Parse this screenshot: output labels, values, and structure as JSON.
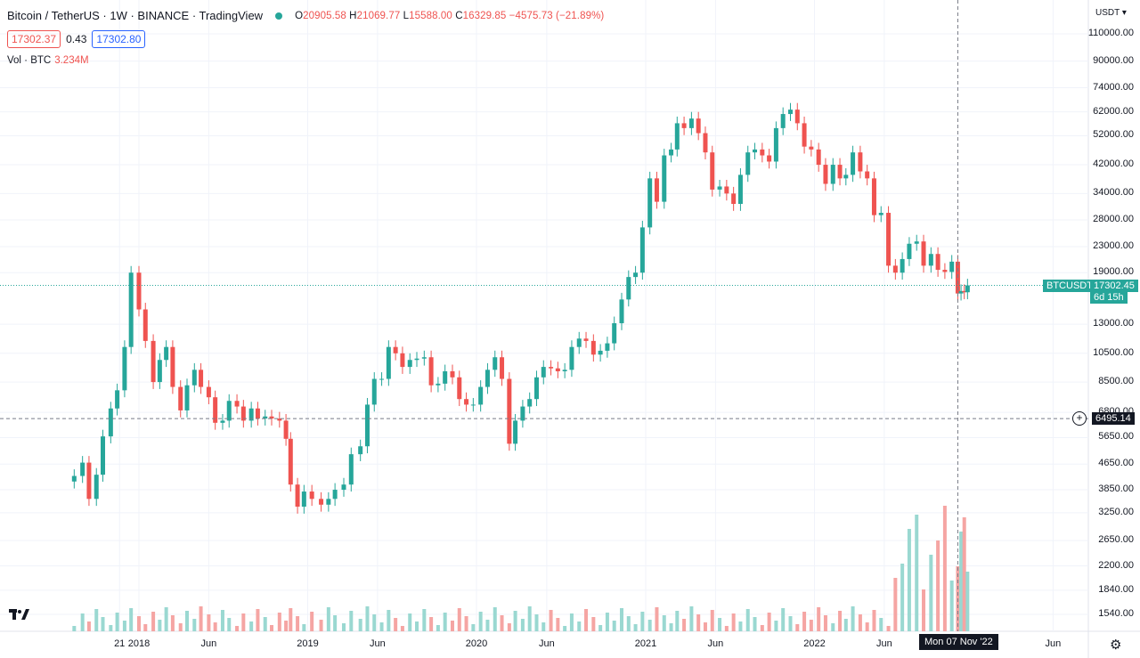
{
  "header": {
    "title": "Bitcoin / TetherUS · 1W · BINANCE · TradingView",
    "ohlc": {
      "o_label": "O",
      "o": "20905.58",
      "h_label": "H",
      "h": "21069.77",
      "l_label": "L",
      "l": "15588.00",
      "c_label": "C",
      "c": "16329.85",
      "change": "−4575.73 (−21.89%)"
    },
    "bid": "17302.37",
    "spread": "0.43",
    "ask": "17302.80",
    "volume_label": "Vol · BTC",
    "volume_value": "3.234M"
  },
  "axis": {
    "currency": "USDT",
    "price_ticks": [
      "110000.00",
      "90000.00",
      "74000.00",
      "62000.00",
      "52000.00",
      "42000.00",
      "34000.00",
      "28000.00",
      "23000.00",
      "19000.00",
      "13000.00",
      "10500.00",
      "8500.00",
      "6800.00",
      "5650.00",
      "4650.00",
      "3850.00",
      "3250.00",
      "2650.00",
      "2200.00",
      "1840.00",
      "1540.00"
    ],
    "time_ticks": [
      "21",
      "2018",
      "Jun",
      "2019",
      "Jun",
      "2020",
      "Jun",
      "2021",
      "Jun",
      "2022",
      "Jun",
      "Jun"
    ]
  },
  "tags": {
    "symbol": "BTCUSDT",
    "last_price": "17302.45",
    "countdown": "6d 15h",
    "crosshair_price": "6495.14",
    "crosshair_date": "Mon 07 Nov '22"
  },
  "colors": {
    "up": "#26a69a",
    "down": "#ef5350",
    "vol_up": "#9ad8d1",
    "vol_down": "#f5a5a3",
    "grid": "#f0f3fa",
    "tag_green": "#26a69a",
    "tag_dark": "#131722"
  },
  "icons": {
    "logo": "tradingview-logo",
    "settings": "gear-icon",
    "add": "plus-circle-icon"
  },
  "chart_data": {
    "type": "candlestick",
    "title": "Bitcoin / TetherUS · 1W · BINANCE",
    "y_scale": "log",
    "ylim": [
      1400,
      120000
    ],
    "x_range": [
      "2017-08",
      "2023-08"
    ],
    "series": [
      {
        "name": "BTCUSDT",
        "points": [
          [
            "2017-08-14",
            4261
          ],
          [
            "2017-09-01",
            4700
          ],
          [
            "2017-09-15",
            3600
          ],
          [
            "2017-10-01",
            4300
          ],
          [
            "2017-10-15",
            5700
          ],
          [
            "2017-11-01",
            7000
          ],
          [
            "2017-11-15",
            8000
          ],
          [
            "2017-12-01",
            11000
          ],
          [
            "2017-12-15",
            19000
          ],
          [
            "2018-01-01",
            14500
          ],
          [
            "2018-01-15",
            11500
          ],
          [
            "2018-02-01",
            8500
          ],
          [
            "2018-02-15",
            10000
          ],
          [
            "2018-03-01",
            11000
          ],
          [
            "2018-03-15",
            8200
          ],
          [
            "2018-04-01",
            6900
          ],
          [
            "2018-04-15",
            8300
          ],
          [
            "2018-05-01",
            9300
          ],
          [
            "2018-05-15",
            8200
          ],
          [
            "2018-06-01",
            7600
          ],
          [
            "2018-06-15",
            6300
          ],
          [
            "2018-07-01",
            6400
          ],
          [
            "2018-07-15",
            7400
          ],
          [
            "2018-08-01",
            7100
          ],
          [
            "2018-08-15",
            6400
          ],
          [
            "2018-09-01",
            7000
          ],
          [
            "2018-09-15",
            6500
          ],
          [
            "2018-10-01",
            6600
          ],
          [
            "2018-10-15",
            6500
          ],
          [
            "2018-11-01",
            6400
          ],
          [
            "2018-11-15",
            5600
          ],
          [
            "2018-11-25",
            4000
          ],
          [
            "2018-12-10",
            3400
          ],
          [
            "2018-12-24",
            3800
          ],
          [
            "2019-01-10",
            3600
          ],
          [
            "2019-01-30",
            3450
          ],
          [
            "2019-02-15",
            3600
          ],
          [
            "2019-03-01",
            3850
          ],
          [
            "2019-03-20",
            4000
          ],
          [
            "2019-04-05",
            5000
          ],
          [
            "2019-04-25",
            5300
          ],
          [
            "2019-05-10",
            7200
          ],
          [
            "2019-05-25",
            8700
          ],
          [
            "2019-06-10",
            8700
          ],
          [
            "2019-06-25",
            11000
          ],
          [
            "2019-07-10",
            10500
          ],
          [
            "2019-07-25",
            9500
          ],
          [
            "2019-08-10",
            10000
          ],
          [
            "2019-08-25",
            10100
          ],
          [
            "2019-09-10",
            10200
          ],
          [
            "2019-09-25",
            8300
          ],
          [
            "2019-10-10",
            8400
          ],
          [
            "2019-10-25",
            9200
          ],
          [
            "2019-11-10",
            8800
          ],
          [
            "2019-11-25",
            7500
          ],
          [
            "2019-12-10",
            7200
          ],
          [
            "2019-12-25",
            7200
          ],
          [
            "2020-01-10",
            8200
          ],
          [
            "2020-01-25",
            9300
          ],
          [
            "2020-02-10",
            10200
          ],
          [
            "2020-02-25",
            8700
          ],
          [
            "2020-03-12",
            5400
          ],
          [
            "2020-03-25",
            6400
          ],
          [
            "2020-04-10",
            7100
          ],
          [
            "2020-04-25",
            7500
          ],
          [
            "2020-05-10",
            8800
          ],
          [
            "2020-05-25",
            9500
          ],
          [
            "2020-06-10",
            9400
          ],
          [
            "2020-06-25",
            9200
          ],
          [
            "2020-07-10",
            9300
          ],
          [
            "2020-07-25",
            11000
          ],
          [
            "2020-08-10",
            11700
          ],
          [
            "2020-08-25",
            11500
          ],
          [
            "2020-09-10",
            10400
          ],
          [
            "2020-09-25",
            10700
          ],
          [
            "2020-10-10",
            11300
          ],
          [
            "2020-10-25",
            13100
          ],
          [
            "2020-11-10",
            15600
          ],
          [
            "2020-11-25",
            18400
          ],
          [
            "2020-12-10",
            19000
          ],
          [
            "2020-12-25",
            26500
          ],
          [
            "2021-01-10",
            38000
          ],
          [
            "2021-01-25",
            32000
          ],
          [
            "2021-02-10",
            45000
          ],
          [
            "2021-02-25",
            47000
          ],
          [
            "2021-03-10",
            57000
          ],
          [
            "2021-03-25",
            55000
          ],
          [
            "2021-04-10",
            59000
          ],
          [
            "2021-04-25",
            53000
          ],
          [
            "2021-05-10",
            46000
          ],
          [
            "2021-05-25",
            35000
          ],
          [
            "2021-06-10",
            35800
          ],
          [
            "2021-06-25",
            34000
          ],
          [
            "2021-07-10",
            31500
          ],
          [
            "2021-07-25",
            39000
          ],
          [
            "2021-08-10",
            46000
          ],
          [
            "2021-08-25",
            47000
          ],
          [
            "2021-09-10",
            45000
          ],
          [
            "2021-09-25",
            43000
          ],
          [
            "2021-10-10",
            55000
          ],
          [
            "2021-10-25",
            61000
          ],
          [
            "2021-11-10",
            63000
          ],
          [
            "2021-11-25",
            57000
          ],
          [
            "2021-12-10",
            48000
          ],
          [
            "2021-12-25",
            47000
          ],
          [
            "2022-01-10",
            42000
          ],
          [
            "2022-01-25",
            36500
          ],
          [
            "2022-02-10",
            42000
          ],
          [
            "2022-02-25",
            38000
          ],
          [
            "2022-03-10",
            39000
          ],
          [
            "2022-03-25",
            46000
          ],
          [
            "2022-04-10",
            40000
          ],
          [
            "2022-04-25",
            38000
          ],
          [
            "2022-05-10",
            29000
          ],
          [
            "2022-05-25",
            29500
          ],
          [
            "2022-06-10",
            20000
          ],
          [
            "2022-06-25",
            19000
          ],
          [
            "2022-07-10",
            21000
          ],
          [
            "2022-07-25",
            23500
          ],
          [
            "2022-08-10",
            23900
          ],
          [
            "2022-08-25",
            20000
          ],
          [
            "2022-09-10",
            21800
          ],
          [
            "2022-09-25",
            19400
          ],
          [
            "2022-10-10",
            19100
          ],
          [
            "2022-10-25",
            20600
          ],
          [
            "2022-11-07",
            16300
          ],
          [
            "2022-11-14",
            16600
          ],
          [
            "2022-11-21",
            16450
          ],
          [
            "2022-11-28",
            17302
          ]
        ]
      }
    ],
    "volume_label": "Vol · BTC",
    "last_volume": "3.234M",
    "last_price": 17302.45,
    "crosshair": {
      "date": "Mon 07 Nov '22",
      "price": 6495.14
    }
  }
}
